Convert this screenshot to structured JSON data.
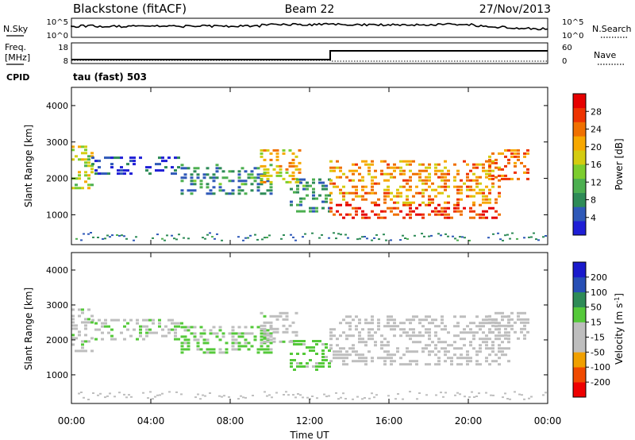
{
  "header": {
    "station": "Blackstone (fitACF)",
    "beam": "Beam 22",
    "date": "27/Nov/2013"
  },
  "sky_panel": {
    "left_label": "N.Sky",
    "right_label": "N.Search",
    "left_ticks": [
      "10^5",
      "10^0"
    ],
    "right_ticks": [
      "10^5",
      "10^0"
    ]
  },
  "freq_panel": {
    "left_label_line1": "Freq.",
    "left_label_line2": "[MHz]",
    "right_label": "Nave",
    "left_ticks": [
      "18",
      "8"
    ],
    "right_ticks": [
      "60",
      "0"
    ],
    "cpid_label": "CPID",
    "cpid_value": "tau (fast) 503"
  },
  "colors": {
    "power": [
      "#1f1fd6",
      "#2f59b8",
      "#2e8b57",
      "#4caf50",
      "#7ccd2e",
      "#d4cc10",
      "#f7a800",
      "#f07000",
      "#ee3300",
      "#e60000"
    ],
    "velocity": [
      "#ee0000",
      "#f04a00",
      "#f0a000",
      "#bebebe",
      "#bebebe",
      "#55c93a",
      "#2e8b57",
      "#274fb5",
      "#1a1acc"
    ]
  },
  "chart_data": [
    {
      "type": "heatmap",
      "id": "power",
      "ylabel": "Slant Range [km]",
      "yticks": [
        1000,
        2000,
        3000,
        4000
      ],
      "ylim": [
        180,
        4500
      ],
      "xlim": [
        0,
        24
      ],
      "colorbar": {
        "label": "Power [dB]",
        "ticks": [
          "4",
          "8",
          "12",
          "16",
          "20",
          "24",
          "28"
        ],
        "range": [
          0,
          32
        ]
      },
      "bands": [
        {
          "start": 0.0,
          "end": 1.0,
          "range_from": 1700,
          "range_to": 2900,
          "value": 16
        },
        {
          "start": 1.0,
          "end": 5.5,
          "range_from": 2100,
          "range_to": 2600,
          "value": 4
        },
        {
          "start": 5.5,
          "end": 10.0,
          "range_from": 1600,
          "range_to": 2400,
          "value": 8
        },
        {
          "start": 9.5,
          "end": 11.5,
          "range_from": 1900,
          "range_to": 2800,
          "value": 20
        },
        {
          "start": 11.0,
          "end": 13.0,
          "range_from": 1100,
          "range_to": 2000,
          "value": 8
        },
        {
          "start": 13.0,
          "end": 21.5,
          "range_from": 950,
          "range_to": 1300,
          "value": 28
        },
        {
          "start": 13.0,
          "end": 21.5,
          "range_from": 1300,
          "range_to": 2500,
          "value": 22
        },
        {
          "start": 21.0,
          "end": 23.0,
          "range_from": 2000,
          "range_to": 2800,
          "value": 24
        }
      ]
    },
    {
      "type": "heatmap",
      "id": "velocity",
      "ylabel": "Slant Range [km]",
      "xlabel": "Time UT",
      "yticks": [
        1000,
        2000,
        3000,
        4000
      ],
      "ylim": [
        180,
        4500
      ],
      "xlim": [
        0,
        24
      ],
      "xticks": [
        "00:00",
        "04:00",
        "08:00",
        "12:00",
        "16:00",
        "20:00",
        "00:00"
      ],
      "colorbar": {
        "label": "Velocity [m s",
        "label_sup": "-1",
        "label_end": "]",
        "ticks": [
          "-200",
          "-100",
          "-50",
          "-15",
          "15",
          "50",
          "100",
          "200"
        ],
        "range": [
          -250,
          250
        ]
      },
      "bands": [
        {
          "start": 0.0,
          "end": 1.0,
          "range_from": 1700,
          "range_to": 2900,
          "value": 15
        },
        {
          "start": 1.0,
          "end": 5.5,
          "range_from": 2000,
          "range_to": 2600,
          "value": 20
        },
        {
          "start": 5.5,
          "end": 10.0,
          "range_from": 1600,
          "range_to": 2400,
          "value": 30
        },
        {
          "start": 9.5,
          "end": 11.5,
          "range_from": 1900,
          "range_to": 2800,
          "value": 10
        },
        {
          "start": 11.0,
          "end": 13.0,
          "range_from": 1100,
          "range_to": 2000,
          "value": 40
        },
        {
          "start": 13.0,
          "end": 22.0,
          "range_from": 1300,
          "range_to": 2700,
          "value": 0
        },
        {
          "start": 21.0,
          "end": 23.0,
          "range_from": 2000,
          "range_to": 2800,
          "value": 0
        }
      ]
    }
  ]
}
